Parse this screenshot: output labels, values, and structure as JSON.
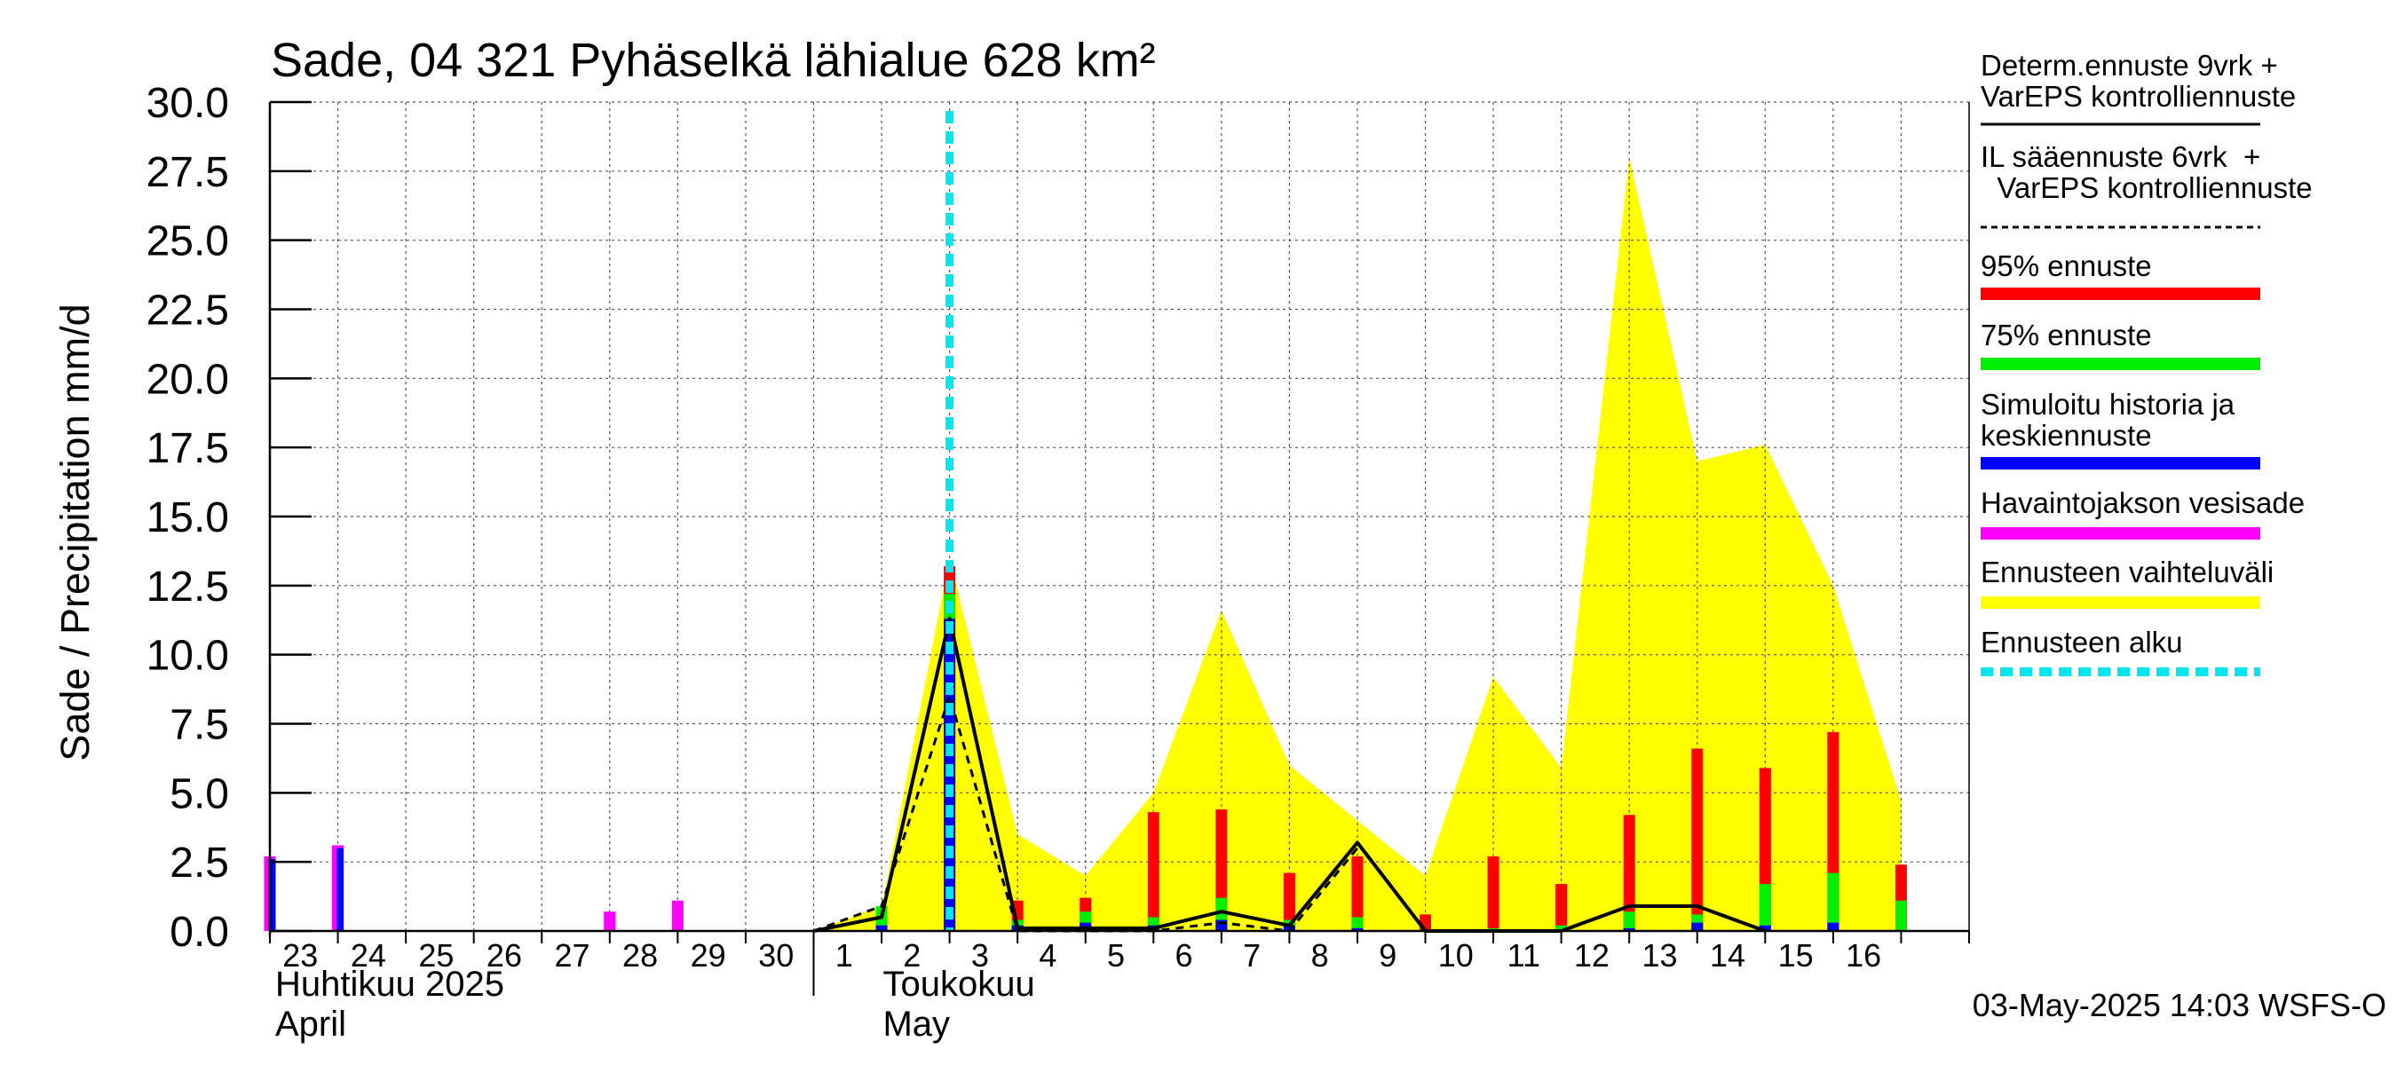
{
  "chart_data": {
    "type": "bar",
    "title": "Sade, 04 321 Pyhäselkä lähialue 628 km²",
    "ylabel": "Sade / Precipitation   mm/d",
    "ylim": [
      0,
      30
    ],
    "ytick_labels": [
      "0.0",
      "2.5",
      "5.0",
      "7.5",
      "10.0",
      "12.5",
      "15.0",
      "17.5",
      "20.0",
      "22.5",
      "25.0",
      "27.5",
      "30.0"
    ],
    "xtick_labels": [
      "23",
      "24",
      "25",
      "26",
      "27",
      "28",
      "29",
      "30",
      "1",
      "2",
      "3",
      "4",
      "5",
      "6",
      "7",
      "8",
      "9",
      "10",
      "11",
      "12",
      "13",
      "14",
      "15",
      "16"
    ],
    "month_labels": [
      {
        "line1": "Huhtikuu  2025",
        "line2": "April"
      },
      {
        "line1": "Toukokuu",
        "line2": "May"
      }
    ],
    "timestamp": "03-May-2025 14:03 WSFS-O",
    "forecast_start_day_index": 10,
    "grid": true,
    "series": [
      {
        "name": "Havaintojakson vesisade",
        "color": "#ff00ff",
        "bars": [
          {
            "day": 0,
            "value": 2.7
          },
          {
            "day": 1,
            "value": 3.1
          },
          {
            "day": 5,
            "value": 0.7
          },
          {
            "day": 6,
            "value": 1.1
          }
        ]
      },
      {
        "name": "Simuloitu historia ja keskiennuste",
        "color": "#0000ff",
        "bars": [
          {
            "day": 0,
            "value": 2.6
          },
          {
            "day": 1,
            "value": 3.0
          },
          {
            "day": 5,
            "value": 0.0
          },
          {
            "day": 6,
            "value": 0.0
          },
          {
            "day": 9,
            "value": 0.2
          },
          {
            "day": 10,
            "value": 11.3
          },
          {
            "day": 11,
            "value": 0.2
          },
          {
            "day": 12,
            "value": 0.3
          },
          {
            "day": 13,
            "value": 0.2
          },
          {
            "day": 14,
            "value": 0.4
          },
          {
            "day": 15,
            "value": 0.2
          },
          {
            "day": 16,
            "value": 0.1
          },
          {
            "day": 17,
            "value": 0.0
          },
          {
            "day": 18,
            "value": 0.0
          },
          {
            "day": 19,
            "value": 0.0
          },
          {
            "day": 20,
            "value": 0.1
          },
          {
            "day": 21,
            "value": 0.3
          },
          {
            "day": 22,
            "value": 0.2
          },
          {
            "day": 23,
            "value": 0.3
          }
        ]
      },
      {
        "name": "75% ennuste",
        "color": "#00ee00",
        "bars": [
          {
            "day": 9,
            "value": 0.9
          },
          {
            "day": 10,
            "value": 12.2
          },
          {
            "day": 11,
            "value": 0.4
          },
          {
            "day": 12,
            "value": 0.7
          },
          {
            "day": 13,
            "value": 0.5
          },
          {
            "day": 14,
            "value": 1.2
          },
          {
            "day": 15,
            "value": 0.4
          },
          {
            "day": 16,
            "value": 0.5
          },
          {
            "day": 17,
            "value": 0.0
          },
          {
            "day": 18,
            "value": 0.1
          },
          {
            "day": 19,
            "value": 0.2
          },
          {
            "day": 20,
            "value": 0.7
          },
          {
            "day": 21,
            "value": 0.6
          },
          {
            "day": 22,
            "value": 1.7
          },
          {
            "day": 23,
            "value": 2.1
          },
          {
            "day": 24,
            "value": 1.1
          }
        ]
      },
      {
        "name": "95% ennuste",
        "color": "#ff0000",
        "bars": [
          {
            "day": 10,
            "value": 13.2
          },
          {
            "day": 11,
            "value": 1.1
          },
          {
            "day": 12,
            "value": 1.2
          },
          {
            "day": 13,
            "value": 4.3
          },
          {
            "day": 14,
            "value": 4.4
          },
          {
            "day": 15,
            "value": 2.1
          },
          {
            "day": 16,
            "value": 2.7
          },
          {
            "day": 17,
            "value": 0.6
          },
          {
            "day": 18,
            "value": 2.7
          },
          {
            "day": 19,
            "value": 1.7
          },
          {
            "day": 20,
            "value": 4.2
          },
          {
            "day": 21,
            "value": 6.6
          },
          {
            "day": 22,
            "value": 5.9
          },
          {
            "day": 23,
            "value": 7.2
          },
          {
            "day": 24,
            "value": 2.4
          }
        ]
      },
      {
        "name": "Ennusteen vaihteluväli",
        "color": "#ffff00",
        "type": "area",
        "x": [
          8,
          9,
          10,
          11,
          12,
          13,
          14,
          15,
          16,
          17,
          18,
          19,
          20,
          21,
          22,
          23,
          24
        ],
        "values": [
          0.0,
          0.9,
          13.5,
          3.5,
          2.0,
          5.0,
          11.6,
          6.0,
          4.0,
          2.0,
          9.2,
          5.9,
          28.0,
          17.0,
          17.6,
          12.5,
          4.7
        ]
      },
      {
        "name": "Determ.ennuste 9vrk + VarEPS kontrolliennuste",
        "color": "#000000",
        "type": "line",
        "x": [
          8,
          9,
          10,
          11,
          12,
          13,
          14,
          15,
          16,
          17,
          18,
          19,
          20,
          21,
          22
        ],
        "values": [
          0.0,
          0.5,
          11.3,
          0.1,
          0.1,
          0.1,
          0.7,
          0.2,
          3.2,
          0.0,
          0.0,
          0.0,
          0.9,
          0.9,
          0.0
        ]
      },
      {
        "name": "IL sääennuste 6vrk + VarEPS kontrolliennuste",
        "color": "#000000",
        "type": "line",
        "dashed": true,
        "x": [
          8,
          9,
          10,
          11,
          12,
          13,
          14,
          15,
          16
        ],
        "values": [
          0.0,
          0.9,
          8.5,
          0.0,
          0.0,
          0.0,
          0.3,
          0.0,
          3.0
        ]
      }
    ],
    "legend": [
      {
        "label": "Determ.ennuste 9vrk +\nVarEPS kontrolliennuste",
        "style": "solid-thin",
        "color": "#000000"
      },
      {
        "label": "IL sääennuste 6vrk  +\n  VarEPS kontrolliennuste",
        "style": "dashed-thin",
        "color": "#000000"
      },
      {
        "label": "95% ennuste",
        "style": "thick",
        "color": "#ff0000"
      },
      {
        "label": "75% ennuste",
        "style": "thick",
        "color": "#00ee00"
      },
      {
        "label": "Simuloitu historia ja\nkeskiennuste",
        "style": "thick",
        "color": "#0000ff"
      },
      {
        "label": "Havaintojakson vesisade",
        "style": "thick",
        "color": "#ff00ff"
      },
      {
        "label": "Ennusteen vaihteluväli",
        "style": "thick",
        "color": "#ffff00"
      },
      {
        "label": "Ennusteen alku",
        "style": "dashed-thick",
        "color": "#00e5ee"
      }
    ]
  }
}
